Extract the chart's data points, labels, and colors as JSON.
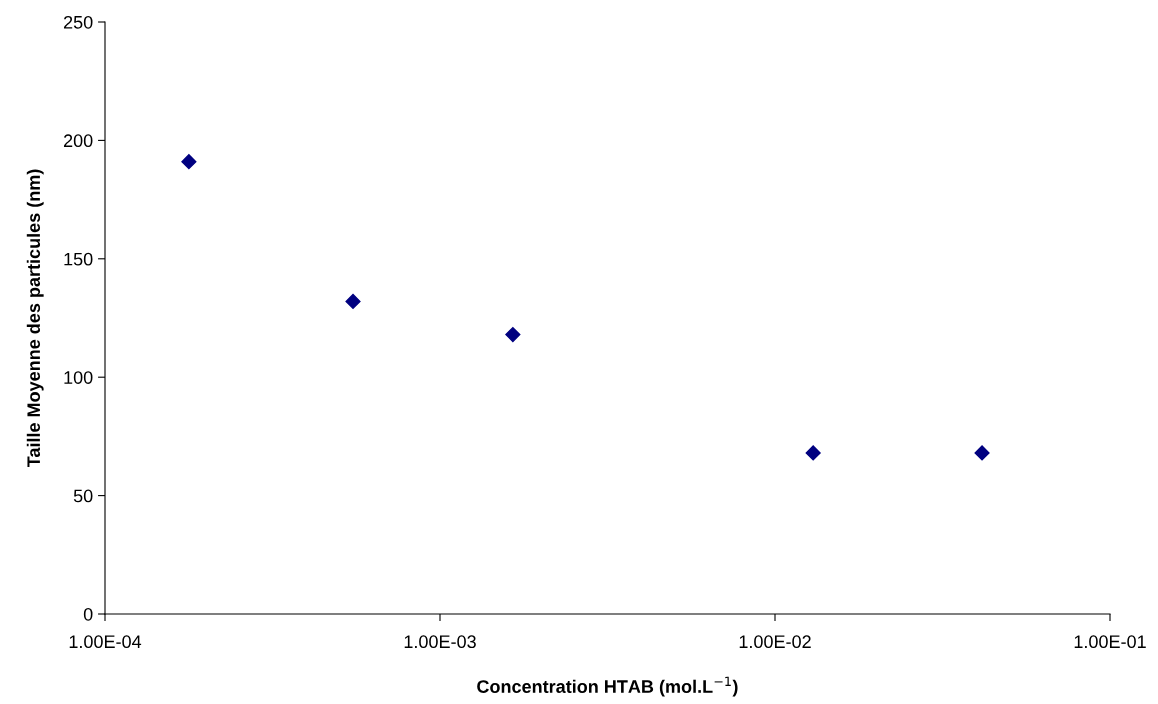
{
  "chart_data": {
    "type": "scatter",
    "xlabel": "Concentration HTAB (mol.L$^{−1}$)",
    "ylabel": "Taille Moyenne des particules (nm)",
    "x": [
      0.000178,
      0.00055,
      0.00165,
      0.013,
      0.0415
    ],
    "series": [
      {
        "color": "#000080",
        "values": [
          191,
          132,
          118,
          68,
          68
        ]
      }
    ],
    "log": "x",
    "xlim": [
      0.0001,
      0.1
    ],
    "xticks": [
      {
        "value": 0.0001,
        "label": "1.00E-04"
      },
      {
        "value": 0.001,
        "label": "1.00E-03"
      },
      {
        "value": 0.01,
        "label": "1.00E-02"
      },
      {
        "value": 0.1,
        "label": "1.00E-01"
      }
    ],
    "ylim": [
      0,
      250
    ],
    "yticks": [
      0,
      50,
      100,
      150,
      200,
      250
    ],
    "marker": "diamond",
    "grid": false,
    "legend": false
  }
}
